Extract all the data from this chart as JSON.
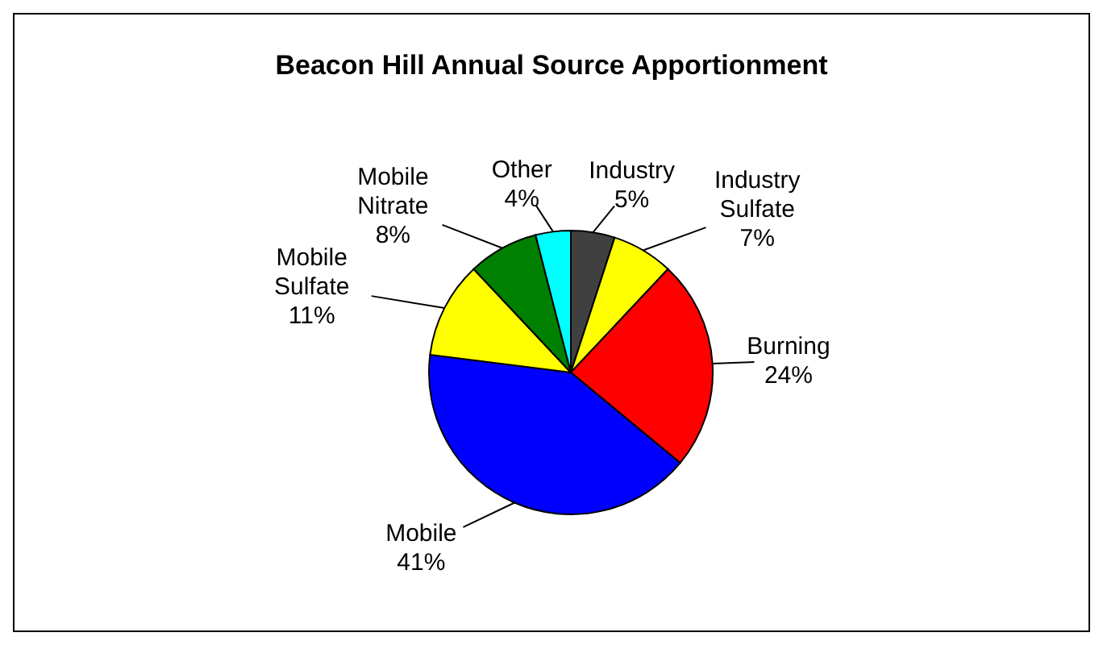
{
  "chart_data": {
    "type": "pie",
    "title": "Beacon Hill Annual Source Apportionment",
    "categories": [
      "Industry",
      "Industry Sulfate",
      "Burning",
      "Mobile",
      "Mobile Sulfate",
      "Mobile Nitrate",
      "Other"
    ],
    "values": [
      5,
      7,
      24,
      41,
      11,
      8,
      4
    ],
    "value_labels": [
      "5%",
      "7%",
      "24%",
      "41%",
      "11%",
      "8%",
      "4%"
    ],
    "colors": [
      "#404040",
      "#ffff00",
      "#ff0000",
      "#0000ff",
      "#ffff00",
      "#008000",
      "#00ffff"
    ]
  }
}
